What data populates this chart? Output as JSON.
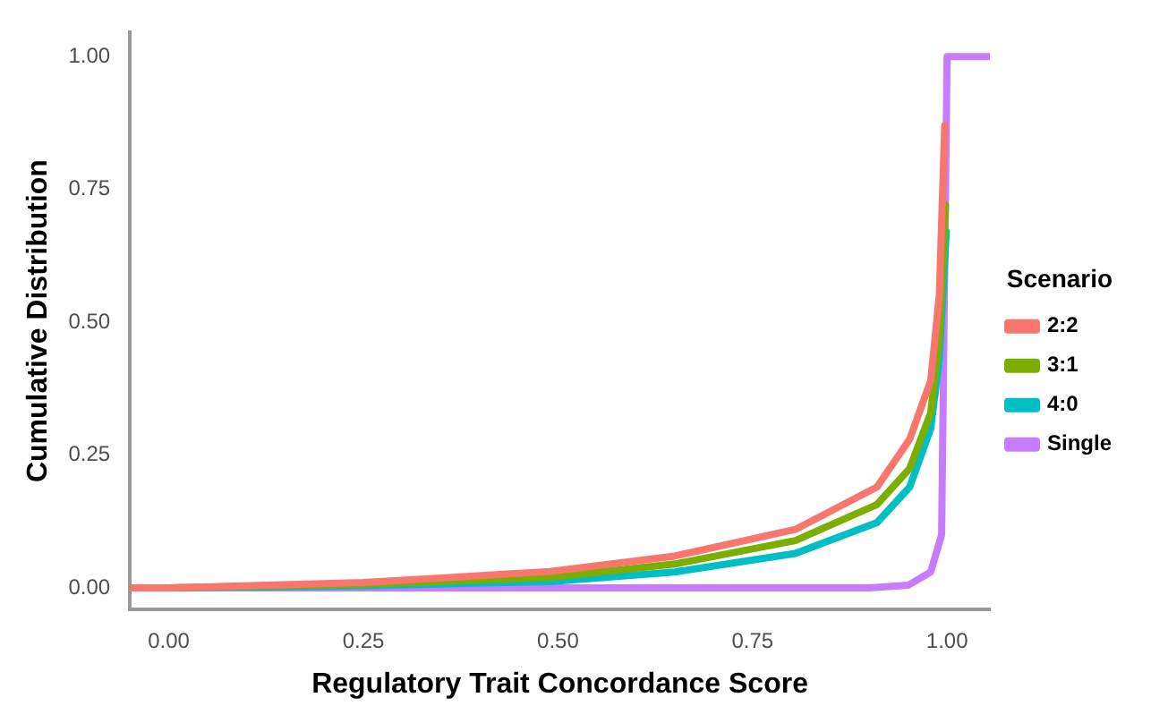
{
  "chart_data": {
    "type": "line",
    "xlabel": "Regulatory Trait Concordance Score",
    "ylabel": "Cumulative Distribution",
    "legend_title": "Scenario",
    "legend": "right",
    "grid": false,
    "marker": "none",
    "line_style": "solid",
    "xlim": [
      -0.05,
      1.055
    ],
    "ylim": [
      -0.04,
      1.045
    ],
    "xticks": [
      {
        "value": 0,
        "label": "0.00"
      },
      {
        "value": 0.25,
        "label": "0.25"
      },
      {
        "value": 0.5,
        "label": "0.50"
      },
      {
        "value": 0.75,
        "label": "0.75"
      },
      {
        "value": 1,
        "label": "1.00"
      }
    ],
    "yticks": [
      {
        "value": 0,
        "label": "0.00"
      },
      {
        "value": 0.25,
        "label": "0.25"
      },
      {
        "value": 0.5,
        "label": "0.50"
      },
      {
        "value": 0.75,
        "label": "0.75"
      },
      {
        "value": 1,
        "label": "1.00"
      }
    ],
    "series": [
      {
        "name": "2:2",
        "color": "#f8766d",
        "x": [
          -0.05,
          0,
          0.25,
          0.49,
          0.65,
          0.805,
          0.91,
          0.952,
          0.979,
          0.99,
          0.997
        ],
        "values": [
          0,
          0,
          0.01,
          0.031,
          0.06,
          0.11,
          0.19,
          0.28,
          0.39,
          0.55,
          0.87
        ]
      },
      {
        "name": "3:1",
        "color": "#7cae00",
        "x": [
          -0.05,
          0,
          0.25,
          0.49,
          0.65,
          0.805,
          0.91,
          0.952,
          0.979,
          0.99,
          0.998
        ],
        "values": [
          0,
          0,
          0.007,
          0.02,
          0.045,
          0.089,
          0.157,
          0.225,
          0.33,
          0.47,
          0.72
        ]
      },
      {
        "name": "4:0",
        "color": "#00bfc4",
        "x": [
          -0.05,
          0,
          0.25,
          0.49,
          0.65,
          0.805,
          0.91,
          0.952,
          0.979,
          0.99,
          0.999
        ],
        "values": [
          0,
          0,
          0.004,
          0.012,
          0.03,
          0.065,
          0.123,
          0.19,
          0.3,
          0.43,
          0.67
        ]
      },
      {
        "name": "Single",
        "color": "#c77cff",
        "x": [
          -0.05,
          0.9,
          0.95,
          0.979,
          0.993,
          1,
          1.055
        ],
        "values": [
          0,
          0,
          0.005,
          0.03,
          0.1,
          1,
          1
        ]
      }
    ]
  }
}
